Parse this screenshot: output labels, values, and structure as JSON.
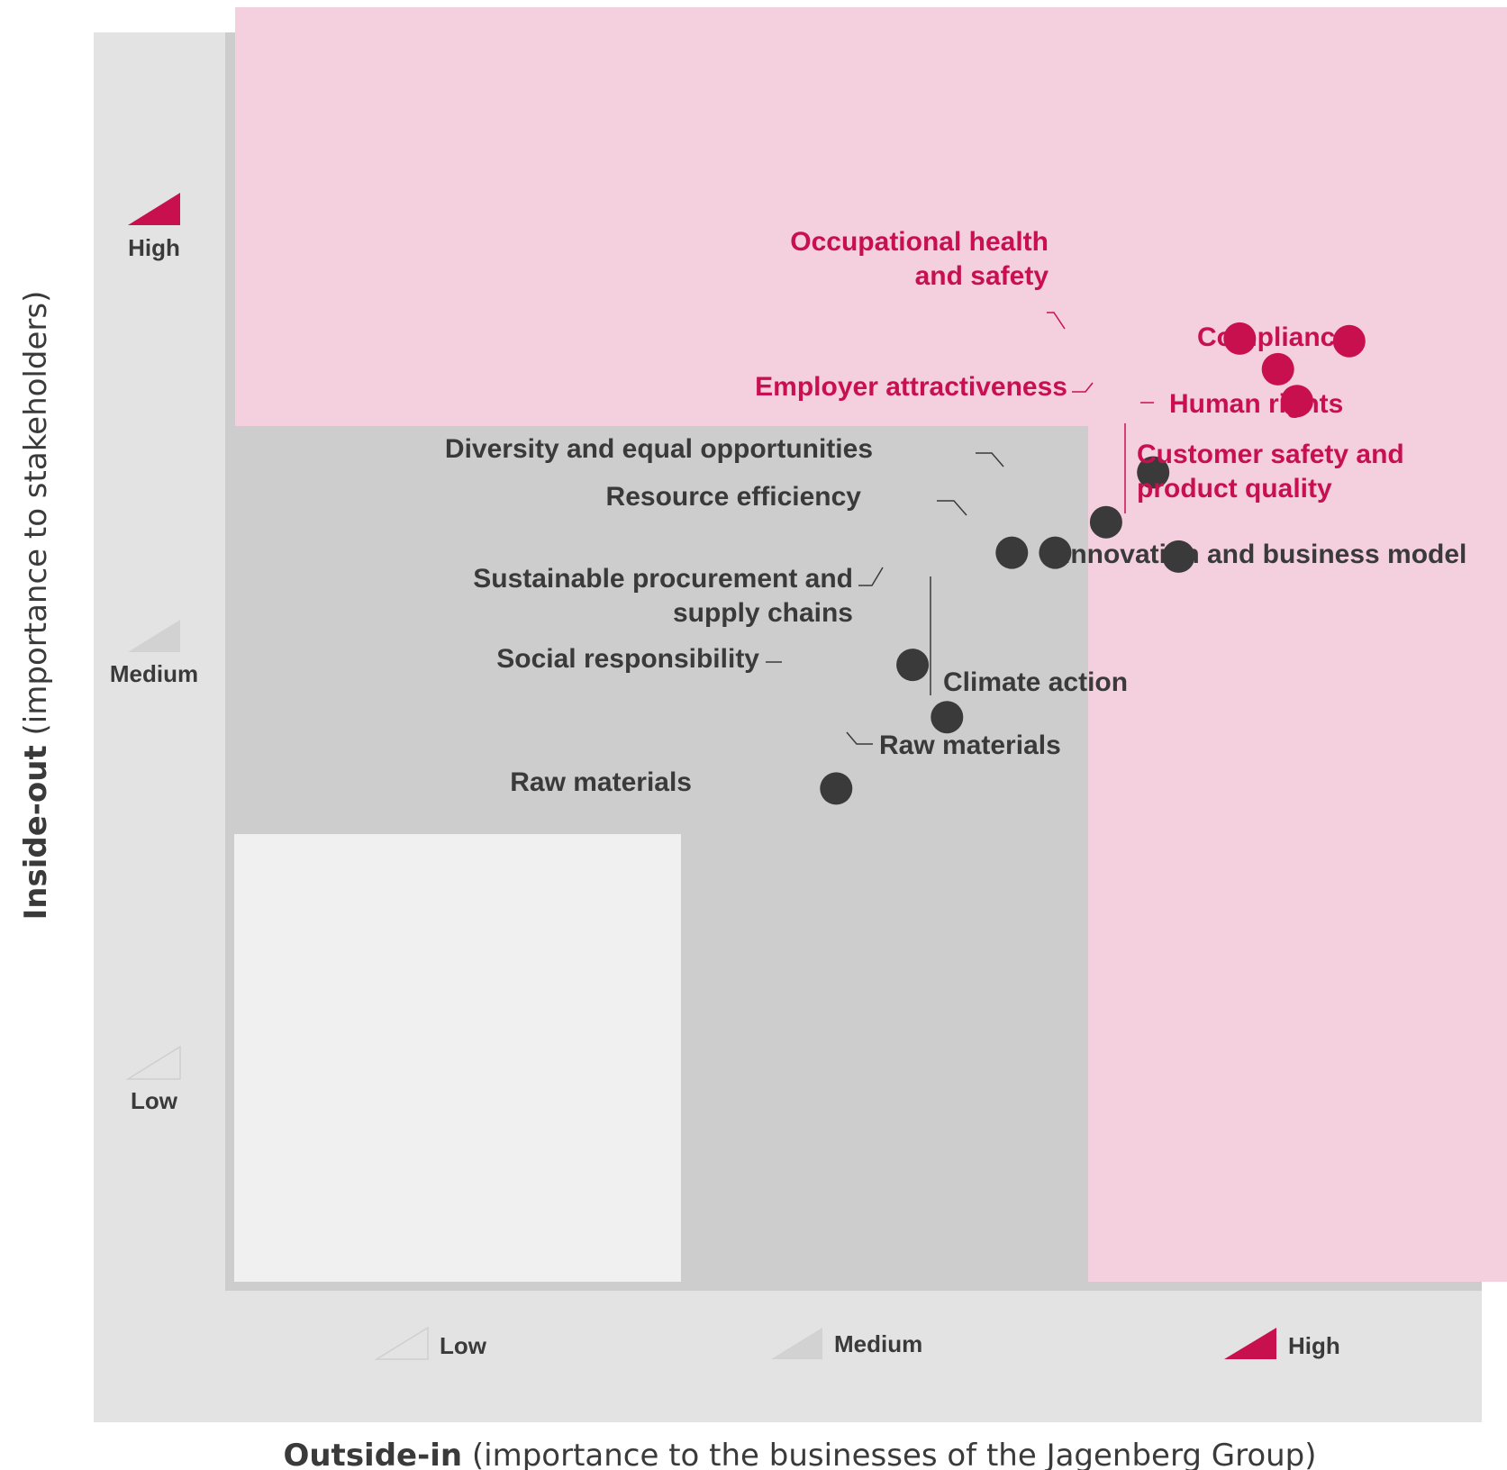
{
  "chart_data": {
    "type": "scatter",
    "title": "",
    "x_axis": {
      "title_strong": "Outside-in",
      "title_rest": " (importance to the businesses of the Jagenberg Group)",
      "ticks": [
        "Low",
        "Medium",
        "High"
      ],
      "range": [
        0,
        100
      ]
    },
    "y_axis": {
      "title_strong": "Inside-out",
      "title_rest": " (importance to stakeholders)",
      "ticks": [
        "Low",
        "Medium",
        "High"
      ],
      "range": [
        0,
        100
      ]
    },
    "colors": {
      "material": "#c8104f",
      "other": "#3a3a3a",
      "zone_high": "#f4cfdd",
      "zone_medium": "#cdcdcd",
      "zone_low": "#f0f0f0",
      "frame": "#e3e3e3"
    },
    "points": [
      {
        "label": "Occupational health and safety",
        "lines": [
          "Occupational health",
          "and safety"
        ],
        "x": 79,
        "y": 74,
        "group": "material"
      },
      {
        "label": "Compliance",
        "lines": [
          "Compliance"
        ],
        "x": 87.6,
        "y": 73.8,
        "group": "material"
      },
      {
        "label": "Employer attractiveness",
        "lines": [
          "Employer attractiveness"
        ],
        "x": 82,
        "y": 71.6,
        "group": "material"
      },
      {
        "label": "Human rights",
        "lines": [
          "Human rights"
        ],
        "x": 83.5,
        "y": 69.1,
        "group": "material"
      },
      {
        "label": "Customer safety and product quality",
        "lines": [
          "Customer safety and",
          "product quality"
        ],
        "x": 83.5,
        "y": 69.1,
        "group": "material"
      },
      {
        "label": "Diversity and equal opportunities",
        "lines": [
          "Diversity and equal opportunities"
        ],
        "x": 72.2,
        "y": 63.5,
        "group": "other"
      },
      {
        "label": "Resource efficiency",
        "lines": [
          "Resource efficiency"
        ],
        "x": 68.5,
        "y": 59.6,
        "group": "other"
      },
      {
        "label": "Sustainable procurement and supply chains",
        "lines": [
          "Sustainable procurement and",
          "supply chains"
        ],
        "x": 61.1,
        "y": 57.2,
        "group": "other"
      },
      {
        "label": "Climate action",
        "lines": [
          "Climate action"
        ],
        "x": 64.5,
        "y": 57.2,
        "group": "other"
      },
      {
        "label": "Innovation and business model",
        "lines": [
          "Innovation and business model"
        ],
        "x": 74.2,
        "y": 56.9,
        "group": "other"
      },
      {
        "label": "Social responsibility",
        "lines": [
          "Social responsibility"
        ],
        "x": 53.3,
        "y": 48.4,
        "group": "other"
      },
      {
        "label": "Raw materials",
        "lines": [
          "Raw materials"
        ],
        "x": 56.0,
        "y": 44.3,
        "group": "other"
      },
      {
        "label": "Raw materials",
        "lines": [
          "Raw materials"
        ],
        "x": 47.3,
        "y": 38.7,
        "group": "other"
      }
    ]
  }
}
